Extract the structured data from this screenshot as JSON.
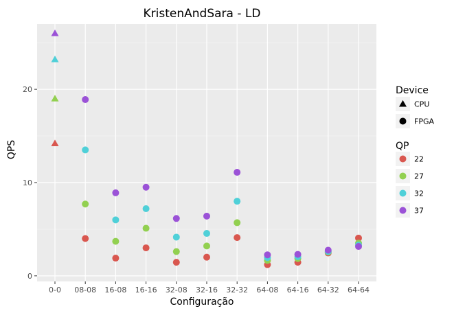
{
  "chart_data": {
    "type": "scatter",
    "title": "KristenAndSara - LD",
    "xlabel": "Configuração",
    "ylabel": "QPS",
    "categories": [
      "0-0",
      "08-08",
      "16-08",
      "16-16",
      "32-08",
      "32-16",
      "32-32",
      "64-08",
      "64-16",
      "64-32",
      "64-64"
    ],
    "yticks": [
      0,
      10,
      20
    ],
    "ylim": [
      -0.6,
      27
    ],
    "grid": true,
    "legend_placement": "right",
    "shape_legend": {
      "title": "Device",
      "items": [
        {
          "label": "CPU",
          "shape": "triangle"
        },
        {
          "label": "FPGA",
          "shape": "circle"
        }
      ]
    },
    "color_legend": {
      "title": "QP",
      "items": [
        {
          "label": "22",
          "color": "#d9574f"
        },
        {
          "label": "27",
          "color": "#92d050"
        },
        {
          "label": "32",
          "color": "#4fd0d8"
        },
        {
          "label": "37",
          "color": "#9b52d7"
        }
      ]
    },
    "series": [
      {
        "qp": "22",
        "color": "#d9574f",
        "points": [
          {
            "x": "0-0",
            "y": 14.2,
            "device": "CPU"
          },
          {
            "x": "08-08",
            "y": 4.0,
            "device": "FPGA"
          },
          {
            "x": "16-08",
            "y": 1.9,
            "device": "FPGA"
          },
          {
            "x": "16-16",
            "y": 3.0,
            "device": "FPGA"
          },
          {
            "x": "32-08",
            "y": 1.45,
            "device": "FPGA"
          },
          {
            "x": "32-16",
            "y": 2.0,
            "device": "FPGA"
          },
          {
            "x": "32-32",
            "y": 4.1,
            "device": "FPGA"
          },
          {
            "x": "64-08",
            "y": 1.2,
            "device": "FPGA"
          },
          {
            "x": "64-16",
            "y": 1.45,
            "device": "FPGA"
          },
          {
            "x": "64-32",
            "y": 2.45,
            "device": "FPGA"
          },
          {
            "x": "64-64",
            "y": 4.05,
            "device": "FPGA"
          }
        ]
      },
      {
        "qp": "27",
        "color": "#92d050",
        "points": [
          {
            "x": "0-0",
            "y": 19.0,
            "device": "CPU"
          },
          {
            "x": "08-08",
            "y": 7.7,
            "device": "FPGA"
          },
          {
            "x": "16-08",
            "y": 3.7,
            "device": "FPGA"
          },
          {
            "x": "16-16",
            "y": 5.1,
            "device": "FPGA"
          },
          {
            "x": "32-08",
            "y": 2.6,
            "device": "FPGA"
          },
          {
            "x": "32-16",
            "y": 3.2,
            "device": "FPGA"
          },
          {
            "x": "32-32",
            "y": 5.7,
            "device": "FPGA"
          },
          {
            "x": "64-08",
            "y": 1.65,
            "device": "FPGA"
          },
          {
            "x": "64-16",
            "y": 1.85,
            "device": "FPGA"
          },
          {
            "x": "64-32",
            "y": 2.55,
            "device": "FPGA"
          },
          {
            "x": "64-64",
            "y": 3.5,
            "device": "FPGA"
          }
        ]
      },
      {
        "qp": "32",
        "color": "#4fd0d8",
        "points": [
          {
            "x": "0-0",
            "y": 23.2,
            "device": "CPU"
          },
          {
            "x": "08-08",
            "y": 13.5,
            "device": "FPGA"
          },
          {
            "x": "16-08",
            "y": 6.0,
            "device": "FPGA"
          },
          {
            "x": "16-16",
            "y": 7.2,
            "device": "FPGA"
          },
          {
            "x": "32-08",
            "y": 4.15,
            "device": "FPGA"
          },
          {
            "x": "32-16",
            "y": 4.55,
            "device": "FPGA"
          },
          {
            "x": "32-32",
            "y": 8.0,
            "device": "FPGA"
          },
          {
            "x": "64-08",
            "y": 1.95,
            "device": "FPGA"
          },
          {
            "x": "64-16",
            "y": 2.05,
            "device": "FPGA"
          },
          {
            "x": "64-32",
            "y": 2.6,
            "device": "FPGA"
          },
          {
            "x": "64-64",
            "y": 3.3,
            "device": "FPGA"
          }
        ]
      },
      {
        "qp": "37",
        "color": "#9b52d7",
        "points": [
          {
            "x": "0-0",
            "y": 26.0,
            "device": "CPU"
          },
          {
            "x": "08-08",
            "y": 18.9,
            "device": "FPGA"
          },
          {
            "x": "16-08",
            "y": 8.9,
            "device": "FPGA"
          },
          {
            "x": "16-16",
            "y": 9.5,
            "device": "FPGA"
          },
          {
            "x": "32-08",
            "y": 6.15,
            "device": "FPGA"
          },
          {
            "x": "32-16",
            "y": 6.4,
            "device": "FPGA"
          },
          {
            "x": "32-32",
            "y": 11.1,
            "device": "FPGA"
          },
          {
            "x": "64-08",
            "y": 2.25,
            "device": "FPGA"
          },
          {
            "x": "64-16",
            "y": 2.3,
            "device": "FPGA"
          },
          {
            "x": "64-32",
            "y": 2.75,
            "device": "FPGA"
          },
          {
            "x": "64-64",
            "y": 3.15,
            "device": "FPGA"
          }
        ]
      }
    ]
  }
}
